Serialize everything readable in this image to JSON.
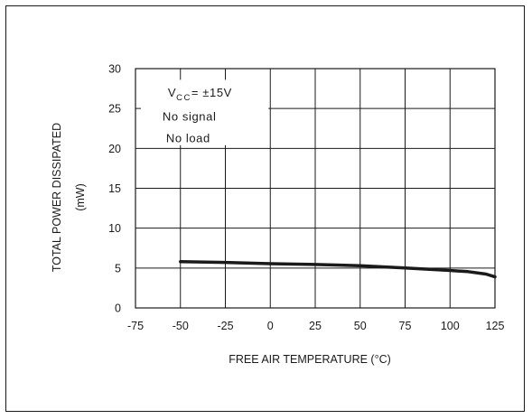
{
  "chart_data": {
    "type": "line",
    "xlabel": "FREE AIR TEMPERATURE (°C)",
    "ylabel": "TOTAL POWER DISSIPATED",
    "ylabel_unit": "(mW)",
    "xlim": [
      -75,
      125
    ],
    "ylim": [
      0,
      30
    ],
    "xticks": [
      "-75",
      "-50",
      "-25",
      "0",
      "25",
      "50",
      "75",
      "100",
      "125"
    ],
    "yticks": [
      "0",
      "5",
      "10",
      "15",
      "20",
      "25",
      "30"
    ],
    "grid": true,
    "annotation": {
      "line1_prefix": "V",
      "line1_sub": "CC",
      "line1_eq": "= ",
      "line1_pm": "±",
      "line1_value": "15V",
      "line2": "No signal",
      "line3": "No load"
    },
    "series": [
      {
        "x": [
          -50,
          -25,
          0,
          25,
          50,
          75,
          100,
          110,
          120,
          125
        ],
        "y": [
          5.8,
          5.7,
          5.55,
          5.45,
          5.3,
          5.0,
          4.7,
          4.55,
          4.25,
          3.9
        ]
      }
    ],
    "colors": {
      "line": "#1a1a1a",
      "grid": "#1a1a1a",
      "background": "#ffffff"
    }
  }
}
